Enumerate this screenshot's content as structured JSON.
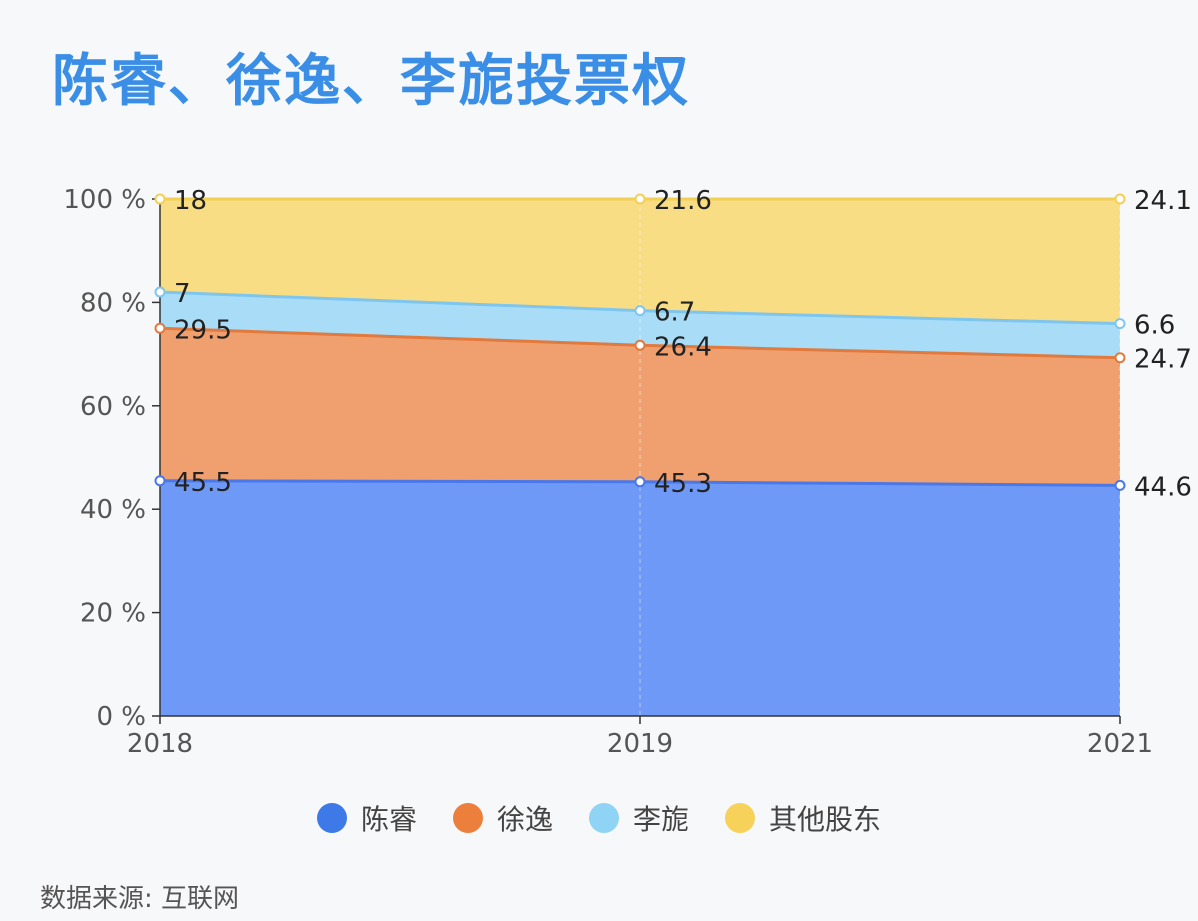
{
  "title": "陈睿、徐逸、李旎投票权",
  "source": "数据来源: 互联网",
  "chart_data": {
    "type": "area",
    "stacked": true,
    "x": [
      "2018",
      "2019",
      "2021"
    ],
    "ylim": [
      0,
      100
    ],
    "yticks": [
      0,
      20,
      40,
      60,
      80,
      100
    ],
    "ytick_labels": [
      "0 %",
      "20 %",
      "40 %",
      "60 %",
      "80 %",
      "100 %"
    ],
    "series": [
      {
        "name": "陈睿",
        "values": [
          45.5,
          45.3,
          44.6
        ],
        "color": "#6e99f7",
        "line": "#4a78e8",
        "legend_color": "#3d7ae8"
      },
      {
        "name": "徐逸",
        "values": [
          29.5,
          26.4,
          24.7
        ],
        "color": "#f0a06e",
        "line": "#e07a3e",
        "legend_color": "#ec7f3b"
      },
      {
        "name": "李旎",
        "values": [
          7,
          6.7,
          6.6
        ],
        "color": "#a8dcf7",
        "line": "#7fc6ef",
        "legend_color": "#8fd3f5"
      },
      {
        "name": "其他股东",
        "values": [
          18,
          21.6,
          24.1
        ],
        "color": "#f8dd84",
        "line": "#f2cf55",
        "legend_color": "#f7d25a"
      }
    ],
    "grid": false,
    "legend_position": "bottom"
  }
}
